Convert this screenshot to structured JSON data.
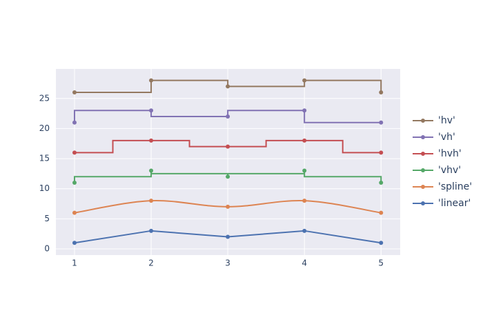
{
  "chart_data": {
    "type": "line",
    "x": [
      1,
      2,
      3,
      4,
      5
    ],
    "series": [
      {
        "name": "'linear'",
        "color": "#4c72b0",
        "shape": "linear",
        "values": [
          1,
          3,
          2,
          3,
          1
        ]
      },
      {
        "name": "'spline'",
        "color": "#dd8452",
        "shape": "spline",
        "values": [
          6,
          8,
          7,
          8,
          6
        ]
      },
      {
        "name": "'vhv'",
        "color": "#55a868",
        "shape": "vhv",
        "values": [
          11,
          13,
          12,
          13,
          11
        ]
      },
      {
        "name": "'hvh'",
        "color": "#c44e52",
        "shape": "hvh",
        "values": [
          16,
          18,
          17,
          18,
          16
        ]
      },
      {
        "name": "'vh'",
        "color": "#8172b3",
        "shape": "vh",
        "values": [
          21,
          23,
          22,
          23,
          21
        ]
      },
      {
        "name": "'hv'",
        "color": "#937860",
        "shape": "hv",
        "values": [
          26,
          28,
          27,
          28,
          26
        ]
      }
    ],
    "xlim": [
      0.757,
      5.25
    ],
    "xticks": [
      1,
      2,
      3,
      4,
      5
    ],
    "ylim": [
      -1.03,
      29.9
    ],
    "yticks": [
      0,
      5,
      10,
      15,
      20,
      25
    ],
    "grid": true,
    "legend": "right"
  }
}
